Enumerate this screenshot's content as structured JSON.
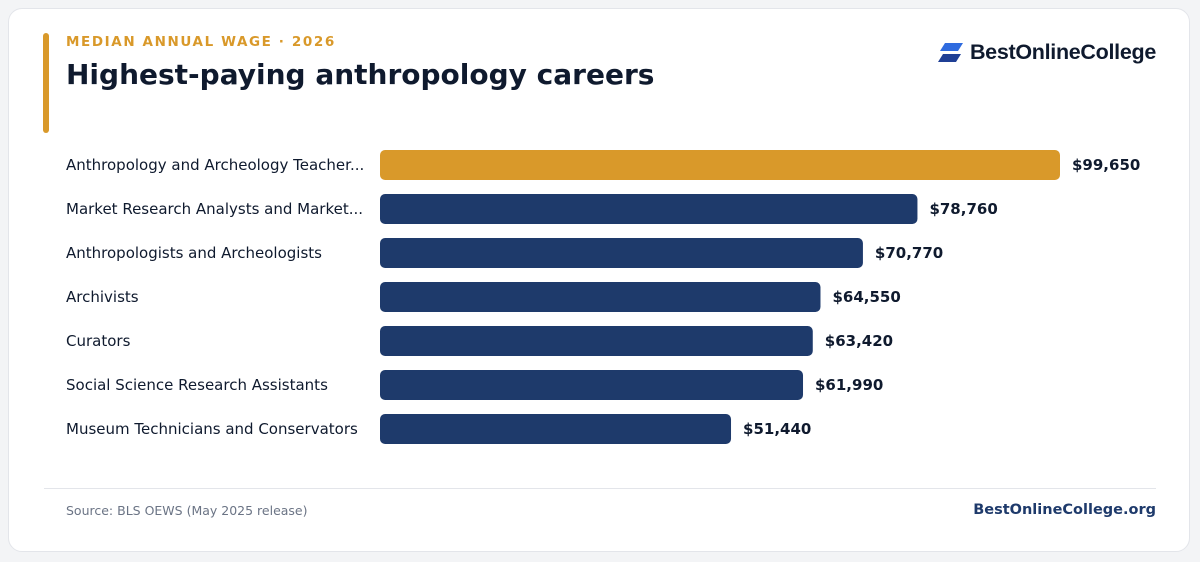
{
  "header": {
    "eyebrow": "MEDIAN ANNUAL WAGE · 2026",
    "title": "Highest-paying anthropology careers"
  },
  "brand": {
    "name": "BestOnlineCollege",
    "logo_icon": "bestonlinecollege-logo-icon"
  },
  "footer": {
    "source": "Source: BLS OEWS (May 2025 release)",
    "site": "BestOnlineCollege.org"
  },
  "colors": {
    "accent": "#d9992a",
    "bar": "#1e3a6b",
    "highlight_bar": "#d9992a",
    "text": "#0f1a2e"
  },
  "chart_data": {
    "type": "bar",
    "orientation": "horizontal",
    "categories": [
      "Anthropology and Archeology Teacher...",
      "Market Research Analysts and Market...",
      "Anthropologists and Archeologists",
      "Archivists",
      "Curators",
      "Social Science Research Assistants",
      "Museum Technicians and Conservators"
    ],
    "values": [
      99650,
      78760,
      70770,
      64550,
      63420,
      61990,
      51440
    ],
    "value_labels": [
      "$99,650",
      "$78,760",
      "$70,770",
      "$64,550",
      "$63,420",
      "$61,990",
      "$51,440"
    ],
    "highlight_index": 0,
    "xlim": [
      0,
      99650
    ],
    "grid": false,
    "legend": "none"
  }
}
